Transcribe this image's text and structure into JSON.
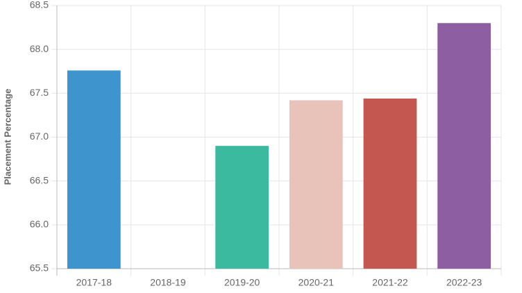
{
  "chart_data": {
    "type": "bar",
    "y_label": "Placement Percentage",
    "categories": [
      "2017-18",
      "2018-19",
      "2019-20",
      "2020-21",
      "2021-22",
      "2022-23"
    ],
    "values": [
      67.76,
      null,
      66.9,
      67.42,
      67.44,
      68.3
    ],
    "colors": [
      "#3e95cd",
      null,
      "#3cba9f",
      "#e8c3b9",
      "#c45850",
      "#8e5ea2"
    ],
    "ylim": [
      65.5,
      68.5
    ],
    "yticks": [
      65.5,
      {
        "value": 66,
        "label": "66.0"
      },
      66.5,
      {
        "value": 67,
        "label": "67.0"
      },
      67.5,
      {
        "value": 68,
        "label": "68.0"
      },
      68.5
    ],
    "grid": true
  }
}
